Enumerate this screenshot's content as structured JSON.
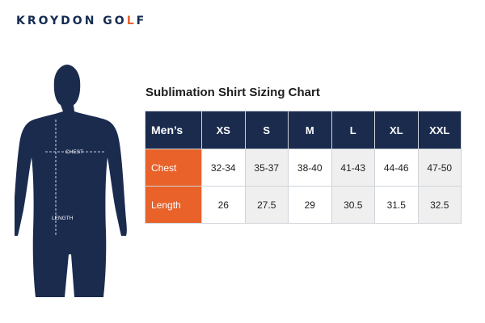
{
  "brand": {
    "name_main": "KROYDON GO",
    "name_accent": "L",
    "name_end": "F"
  },
  "figure": {
    "chest_label": "CHEST",
    "length_label": "LENGTH"
  },
  "chart": {
    "title": "Sublimation Shirt Sizing Chart",
    "corner_label": "Men’s",
    "sizes": [
      "XS",
      "S",
      "M",
      "L",
      "XL",
      "XXL"
    ],
    "rows": [
      {
        "label": "Chest",
        "values": [
          "32-34",
          "35-37",
          "38-40",
          "41-43",
          "44-46",
          "47-50"
        ]
      },
      {
        "label": "Length",
        "values": [
          "26",
          "27.5",
          "29",
          "30.5",
          "31.5",
          "32.5"
        ]
      }
    ]
  },
  "colors": {
    "navy": "#1a2b4e",
    "orange": "#e8622a"
  }
}
